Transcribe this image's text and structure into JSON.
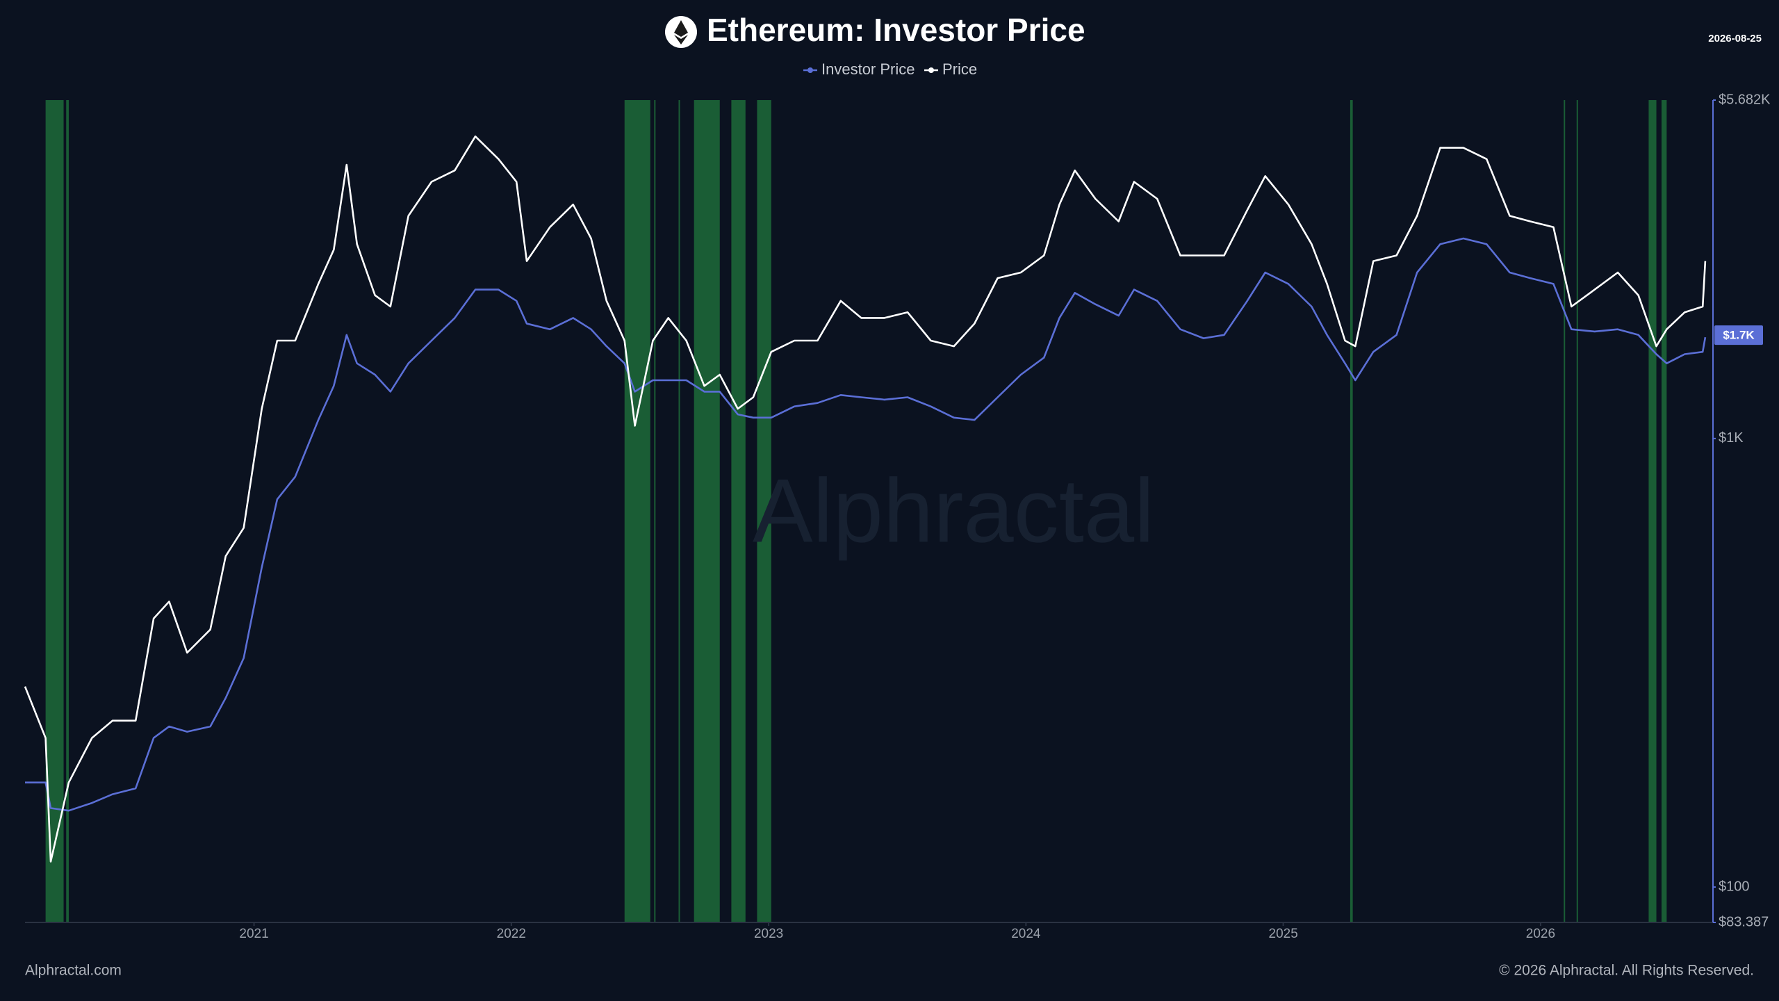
{
  "chart_data": {
    "type": "line",
    "title": "Ethereum: Investor Price",
    "date": "2026-08-25",
    "watermark": "Alphractal",
    "footer_left": "Alphractal.com",
    "footer_right": "© 2026 Alphractal. All Rights Reserved.",
    "legend": "top",
    "y_scale": "log",
    "xlim": [
      2020.11,
      2026.67
    ],
    "xticks": [
      2021,
      2022,
      2023,
      2024,
      2025,
      2026
    ],
    "ylim": [
      83.387,
      5682
    ],
    "yticks": [
      {
        "value": 83.387,
        "label": "$83.387"
      },
      {
        "value": 100,
        "label": "$100"
      },
      {
        "value": 1000,
        "label": "$1K"
      },
      {
        "value": 5682,
        "label": "$5.682K"
      }
    ],
    "current_value": {
      "value": 1700,
      "label": "$1.7K"
    },
    "highlight_color": "#1d6b3a",
    "highlight_ranges": [
      [
        2020.19,
        2020.26
      ],
      [
        2020.27,
        2020.28
      ],
      [
        2022.44,
        2022.54
      ],
      [
        2022.555,
        2022.56
      ],
      [
        2022.65,
        2022.655
      ],
      [
        2022.71,
        2022.81
      ],
      [
        2022.855,
        2022.91
      ],
      [
        2022.955,
        2023.01
      ],
      [
        2025.26,
        2025.27
      ],
      [
        2026.09,
        2026.095
      ],
      [
        2026.14,
        2026.145
      ],
      [
        2026.42,
        2026.45
      ],
      [
        2026.47,
        2026.49
      ]
    ],
    "x": [
      2020.11,
      2020.19,
      2020.21,
      2020.28,
      2020.37,
      2020.45,
      2020.54,
      2020.61,
      2020.67,
      2020.74,
      2020.83,
      2020.89,
      2020.96,
      2021.03,
      2021.09,
      2021.16,
      2021.25,
      2021.31,
      2021.36,
      2021.4,
      2021.47,
      2021.53,
      2021.6,
      2021.69,
      2021.78,
      2021.86,
      2021.95,
      2022.02,
      2022.06,
      2022.15,
      2022.24,
      2022.31,
      2022.37,
      2022.44,
      2022.48,
      2022.55,
      2022.61,
      2022.68,
      2022.75,
      2022.81,
      2022.88,
      2022.94,
      2023.01,
      2023.1,
      2023.19,
      2023.28,
      2023.36,
      2023.45,
      2023.54,
      2023.63,
      2023.72,
      2023.8,
      2023.89,
      2023.98,
      2024.07,
      2024.13,
      2024.19,
      2024.27,
      2024.36,
      2024.42,
      2024.51,
      2024.6,
      2024.69,
      2024.77,
      2024.86,
      2024.93,
      2025.02,
      2025.11,
      2025.17,
      2025.24,
      2025.28,
      2025.35,
      2025.44,
      2025.52,
      2025.61,
      2025.7,
      2025.79,
      2025.88,
      2025.96,
      2026.05,
      2026.12,
      2026.21,
      2026.3,
      2026.38,
      2026.45,
      2026.49,
      2026.56,
      2026.63,
      2026.64
    ],
    "series": [
      {
        "name": "Investor Price",
        "color": "#5b6fd6",
        "values": [
          171,
          171,
          150,
          148,
          154,
          161,
          166,
          215,
          228,
          222,
          228,
          264,
          324,
          516,
          732,
          822,
          1100,
          1310,
          1702,
          1471,
          1388,
          1272,
          1471,
          1653,
          1857,
          2148,
          2148,
          2027,
          1804,
          1752,
          1857,
          1752,
          1606,
          1471,
          1272,
          1349,
          1349,
          1349,
          1272,
          1272,
          1132,
          1113,
          1113,
          1179,
          1200,
          1250,
          1236,
          1221,
          1236,
          1179,
          1113,
          1100,
          1236,
          1388,
          1515,
          1857,
          2112,
          1992,
          1879,
          2148,
          2027,
          1752,
          1673,
          1702,
          2027,
          2345,
          2212,
          1969,
          1702,
          1471,
          1349,
          1560,
          1702,
          2345,
          2713,
          2793,
          2713,
          2345,
          2278,
          2212,
          1752,
          1732,
          1752,
          1702,
          1542,
          1471,
          1542,
          1560,
          1682
        ]
      },
      {
        "name": "Price",
        "color": "#ffffff",
        "values": [
          280,
          215,
          114,
          171,
          215,
          235,
          235,
          397,
          433,
          333,
          375,
          547,
          632,
          1165,
          1653,
          1653,
          2212,
          2635,
          4077,
          2713,
          2087,
          1969,
          3137,
          3736,
          3960,
          4716,
          4198,
          3736,
          2486,
          2960,
          3325,
          2793,
          2027,
          1653,
          1068,
          1653,
          1857,
          1653,
          1310,
          1388,
          1165,
          1236,
          1560,
          1653,
          1653,
          2027,
          1857,
          1857,
          1912,
          1653,
          1606,
          1804,
          2278,
          2345,
          2559,
          3325,
          3960,
          3423,
          3048,
          3736,
          3423,
          2559,
          2559,
          2559,
          3230,
          3847,
          3325,
          2713,
          2212,
          1653,
          1606,
          2486,
          2559,
          3137,
          4449,
          4449,
          4198,
          3137,
          3048,
          2960,
          1969,
          2148,
          2345,
          2087,
          1606,
          1752,
          1912,
          1969,
          2486
        ]
      }
    ]
  }
}
